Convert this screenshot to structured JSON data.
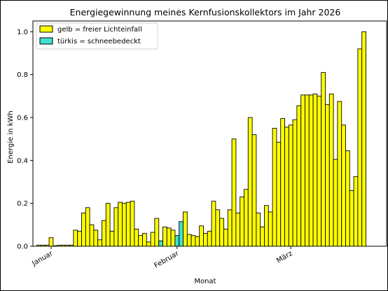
{
  "chart_data": {
    "type": "bar",
    "title": "Energiegewinnung meines Kernfusionskollektors im Jahr 2026",
    "xlabel": "Monat",
    "ylabel": "Energie in kWh",
    "ylim": [
      0,
      1.05
    ],
    "yticks": [
      "0.0",
      "0.2",
      "0.4",
      "0.6",
      "0.8",
      "1.0"
    ],
    "xticks": [
      {
        "label": "Januar",
        "day": 1
      },
      {
        "label": "Februar",
        "day": 32
      },
      {
        "label": "März",
        "day": 60
      }
    ],
    "legend": {
      "placement": "upper-left",
      "entries": [
        {
          "label": "gelb = freier Lichteinfall",
          "color": "#ffff00"
        },
        {
          "label": "türkis = schneebedeckt",
          "color": "#40e0d0"
        }
      ]
    },
    "colors": {
      "clear": "#ffff00",
      "snow": "#40e0d0",
      "edge": "#000000"
    },
    "start_day": -2,
    "values": [
      0.005,
      0.005,
      0.005,
      0.04,
      0.002,
      0.005,
      0.005,
      0.005,
      0.005,
      0.075,
      0.07,
      0.155,
      0.18,
      0.1,
      0.075,
      0.03,
      0.12,
      0.2,
      0.07,
      0.18,
      0.205,
      0.2,
      0.205,
      0.21,
      0.08,
      0.05,
      0.06,
      0.02,
      0.065,
      0.13,
      0.025,
      0.09,
      0.085,
      0.075,
      0.05,
      0.115,
      0.16,
      0.055,
      0.05,
      0.045,
      0.095,
      0.06,
      0.07,
      0.21,
      0.17,
      0.13,
      0.08,
      0.17,
      0.5,
      0.155,
      0.23,
      0.265,
      0.6,
      0.52,
      0.155,
      0.09,
      0.19,
      0.16,
      0.55,
      0.485,
      0.595,
      0.555,
      0.565,
      0.59,
      0.655,
      0.705,
      0.705,
      0.705,
      0.71,
      0.7,
      0.81,
      0.66,
      0.71,
      0.405,
      0.675,
      0.565,
      0.445,
      0.26,
      0.325,
      0.92,
      1.0
    ],
    "snow_days": [
      28,
      32,
      33
    ]
  }
}
